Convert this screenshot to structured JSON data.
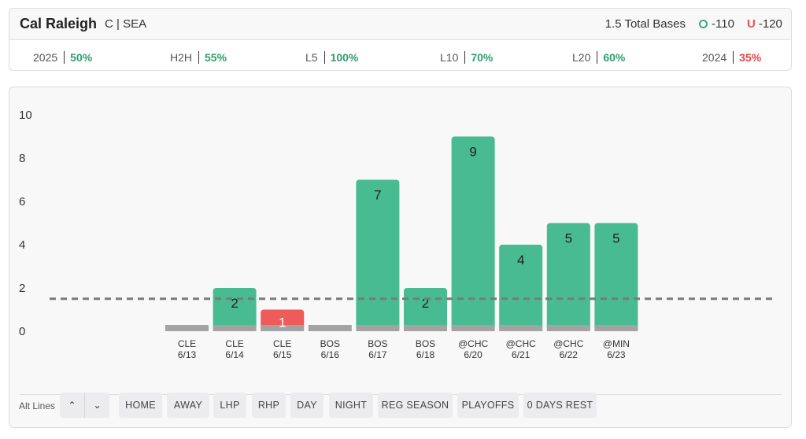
{
  "header": {
    "player_name": "Cal Raleigh",
    "position_team": "C | SEA",
    "prop": "1.5 Total Bases",
    "over_symbol": "O",
    "over_odds": "-110",
    "under_symbol": "U",
    "under_odds": "-120",
    "stats": [
      {
        "label": "2025",
        "value": "50%",
        "status": "pos"
      },
      {
        "label": "H2H",
        "value": "55%",
        "status": "pos"
      },
      {
        "label": "L5",
        "value": "100%",
        "status": "pos"
      },
      {
        "label": "L10",
        "value": "70%",
        "status": "pos"
      },
      {
        "label": "L20",
        "value": "60%",
        "status": "pos"
      },
      {
        "label": "2024",
        "value": "35%",
        "status": "neg"
      }
    ]
  },
  "colors": {
    "hit": "#49bb93",
    "miss": "#ee5b5b",
    "base": "#a3a3a3",
    "line": "#7a7a7a"
  },
  "chart_data": {
    "type": "bar",
    "categories": [
      "CLE\n6/13",
      "CLE\n6/14",
      "CLE\n6/15",
      "BOS\n6/16",
      "BOS\n6/17",
      "BOS\n6/18",
      "@CHC\n6/20",
      "@CHC\n6/21",
      "@CHC\n6/22",
      "@MIN\n6/23"
    ],
    "opponents": [
      "CLE",
      "CLE",
      "CLE",
      "BOS",
      "BOS",
      "BOS",
      "@CHC",
      "@CHC",
      "@CHC",
      "@MIN"
    ],
    "dates": [
      "6/13",
      "6/14",
      "6/15",
      "6/16",
      "6/17",
      "6/18",
      "6/20",
      "6/21",
      "6/22",
      "6/23"
    ],
    "values": [
      0,
      2,
      1,
      0,
      7,
      2,
      9,
      4,
      5,
      5
    ],
    "labels": [
      "",
      "2",
      "1",
      "",
      "7",
      "2",
      "9",
      "4",
      "5",
      "5"
    ],
    "threshold": 1.5,
    "ylim": [
      0,
      10
    ],
    "yticks": [
      "0",
      "2",
      "4",
      "6",
      "8",
      "10"
    ],
    "grid": false
  },
  "filters": {
    "alt_lines_label": "Alt Lines",
    "up_icon": "chevron-up-icon",
    "down_icon": "chevron-down-icon",
    "buttons": [
      "HOME",
      "AWAY",
      "LHP",
      "RHP",
      "DAY",
      "NIGHT",
      "REG SEASON",
      "PLAYOFFS",
      "0 DAYS REST"
    ]
  }
}
